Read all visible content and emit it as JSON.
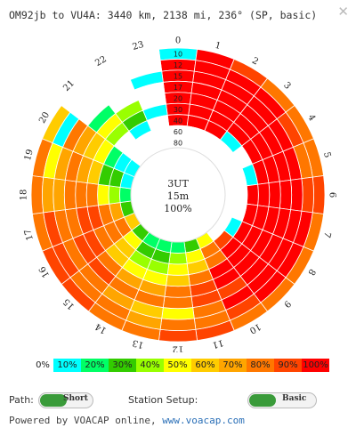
{
  "header": {
    "title": "OM92jb to VU4A: 3440 km, 2138 mi, 236°  (SP, basic)",
    "close_icon": "close-icon"
  },
  "chart_data": {
    "type": "polar-heatmap",
    "hours": [
      "0",
      "1",
      "2",
      "3",
      "4",
      "5",
      "6",
      "7",
      "8",
      "9",
      "10",
      "11",
      "12",
      "13",
      "14",
      "15",
      "16",
      "17",
      "18",
      "19",
      "20",
      "21",
      "22",
      "23"
    ],
    "band_labels": [
      "10",
      "12",
      "15",
      "17",
      "20",
      "30",
      "40",
      "60",
      "80"
    ],
    "center": {
      "line1": "3UT",
      "line2": "15m",
      "line3": "100%"
    },
    "legend": [
      "0%",
      "10%",
      "20%",
      "30%",
      "40%",
      "50%",
      "60%",
      "70%",
      "80%",
      "90%",
      "100%"
    ],
    "colors": [
      "#ffffff",
      "#00ffff",
      "#00ff66",
      "#33cc00",
      "#99ff00",
      "#ffff00",
      "#ffcc00",
      "#ffa500",
      "#ff7700",
      "#ff4400",
      "#ff0000"
    ],
    "rings": [
      [
        1,
        10,
        9,
        8,
        8,
        8,
        9,
        8,
        8,
        8,
        8,
        9,
        9,
        8,
        8,
        9,
        9,
        8,
        8,
        8,
        6,
        0,
        0,
        0
      ],
      [
        10,
        10,
        10,
        10,
        9,
        8,
        9,
        10,
        10,
        10,
        9,
        8,
        8,
        7,
        8,
        8,
        9,
        9,
        7,
        5,
        1,
        0,
        0,
        0
      ],
      [
        10,
        10,
        10,
        10,
        10,
        10,
        10,
        10,
        10,
        10,
        10,
        8,
        5,
        6,
        7,
        8,
        8,
        8,
        7,
        7,
        8,
        0,
        0,
        1
      ],
      [
        10,
        10,
        10,
        10,
        10,
        10,
        10,
        10,
        10,
        10,
        9,
        9,
        8,
        8,
        8,
        9,
        9,
        8,
        8,
        8,
        7,
        2,
        0,
        0
      ],
      [
        10,
        10,
        10,
        10,
        10,
        10,
        10,
        10,
        10,
        10,
        10,
        9,
        8,
        7,
        7,
        8,
        9,
        9,
        8,
        7,
        6,
        5,
        4,
        0
      ],
      [
        10,
        10,
        10,
        10,
        10,
        10,
        10,
        10,
        10,
        10,
        10,
        8,
        6,
        5,
        5,
        6,
        8,
        9,
        8,
        6,
        5,
        4,
        3,
        1
      ],
      [
        10,
        10,
        10,
        1,
        0,
        1,
        10,
        10,
        10,
        10,
        8,
        6,
        5,
        4,
        4,
        6,
        8,
        8,
        5,
        3,
        2,
        0,
        1,
        0
      ],
      [
        0,
        0,
        0,
        0,
        0,
        0,
        0,
        0,
        1,
        9,
        8,
        5,
        4,
        3,
        3,
        5,
        8,
        7,
        4,
        3,
        1,
        0,
        0,
        0
      ],
      [
        0,
        0,
        0,
        0,
        0,
        0,
        0,
        0,
        0,
        0,
        5,
        3,
        2,
        2,
        2,
        3,
        6,
        3,
        2,
        1,
        1,
        0,
        0,
        0
      ]
    ]
  },
  "controls": {
    "path_label": "Path:",
    "path_value": "Short",
    "setup_label": "Station Setup:",
    "setup_value": "Basic"
  },
  "footer": {
    "text": "Powered by VOACAP online, ",
    "link": "www.voacap.com"
  }
}
